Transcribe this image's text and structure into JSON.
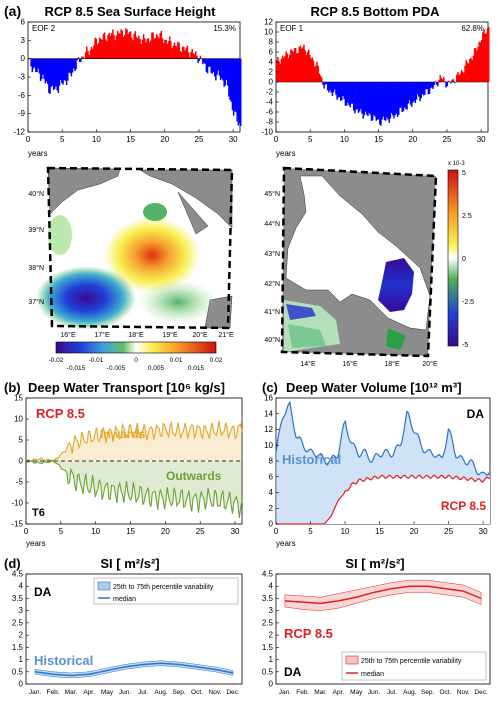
{
  "panels": {
    "a": {
      "tag": "(a)",
      "left_title": "RCP 8.5 Sea Surface Height",
      "right_title": "RCP 8.5 Bottom PDA",
      "left_ts": {
        "corner_label": "EOF 2",
        "pct": "15.3%",
        "ylim": [
          -12,
          6
        ],
        "yticks": [
          "6",
          "3",
          "0",
          "-3",
          "-6",
          "-9",
          "-12"
        ],
        "xlim": [
          0,
          31
        ],
        "xticks": [
          "0",
          "5",
          "10",
          "15",
          "20",
          "25",
          "30"
        ],
        "xlabel": "years"
      },
      "right_ts": {
        "corner_label": "EOF 1",
        "pct": "62.8%",
        "ylim": [
          -10,
          12
        ],
        "yticks": [
          "12",
          "10",
          "8",
          "6",
          "4",
          "2",
          "0",
          "-2",
          "-4",
          "-6",
          "-8",
          "-10"
        ],
        "xlim": [
          0,
          31
        ],
        "xticks": [
          "0",
          "5",
          "10",
          "15",
          "20",
          "25",
          "30"
        ],
        "xlabel": "years"
      },
      "left_map": {
        "lat_labels": [
          "40°N",
          "39°N",
          "38°N",
          "37°N"
        ],
        "lon_labels": [
          "16°E",
          "17°E",
          "18°E",
          "19°E",
          "20°E",
          "21°E"
        ],
        "colorbar_ticks": [
          "-0.02",
          "-0.015",
          "-0.01",
          "-0.005",
          "0",
          "0.005",
          "0.01",
          "0.015",
          "0.02"
        ]
      },
      "right_map": {
        "lat_labels": [
          "45°N",
          "44°N",
          "43°N",
          "42°N",
          "41°N",
          "40°N"
        ],
        "lon_labels": [
          "14°E",
          "16°E",
          "18°E",
          "20°E"
        ],
        "colorbar_scale": "x 10-3",
        "colorbar_ticks": [
          "5",
          "2.5",
          "0",
          "-2.5",
          "-5"
        ]
      }
    },
    "b": {
      "tag": "(b)",
      "title": "Deep Water Transport [10⁶ kg/s]",
      "scenario": "RCP 8.5",
      "inwards": "Inwards",
      "outwards": "Outwards",
      "corner": "T6",
      "yticks": [
        "15",
        "10",
        "5",
        "0",
        "-5",
        "-10",
        "-15"
      ],
      "xticks": [
        "0",
        "5",
        "10",
        "15",
        "20",
        "25",
        "30"
      ],
      "xlabel": "years"
    },
    "c": {
      "tag": "(c)",
      "title": "Deep Water Volume [10¹² m³]",
      "corner": "DA",
      "historical": "Historical",
      "scenario": "RCP 8.5",
      "yticks": [
        "16",
        "14",
        "12",
        "10",
        "8",
        "6",
        "4",
        "2",
        "0"
      ],
      "xticks": [
        "0",
        "5",
        "10",
        "15",
        "20",
        "25",
        "30"
      ],
      "xlabel": "years"
    },
    "d": {
      "tag": "(d)",
      "left_title": "SI [ m²/s²]",
      "right_title": "SI [ m²/s²]",
      "left_corner": "DA",
      "left_label": "Historical",
      "right_corner": "DA",
      "right_label": "RCP 8.5",
      "legend_band": "25th to 75th percentile variability",
      "legend_median": "median",
      "yticks": [
        "4.5",
        "4",
        "3.5",
        "3",
        "2.5",
        "2",
        "1.5",
        "1",
        "0.5",
        "0"
      ],
      "months": [
        "Jan.",
        "Feb.",
        "Mar.",
        "Apr.",
        "May",
        "Jun.",
        "Jul.",
        "Aug.",
        "Sep.",
        "Oct.",
        "Nov.",
        "Dec."
      ]
    }
  },
  "colors": {
    "positive": "#ff0000",
    "negative": "#0000ff",
    "inwards": "#e2a72a",
    "outwards": "#6aa232",
    "historical": "#2a73c8",
    "rcp": "#e02020",
    "land": "#8c8c8c"
  },
  "chart_data": [
    {
      "type": "bar",
      "panel": "a-left",
      "xlabel": "years",
      "ylim": [
        -12,
        6
      ],
      "x": [
        0,
        1,
        2,
        3,
        4,
        5,
        6,
        7,
        8,
        9,
        10,
        11,
        12,
        13,
        14,
        15,
        16,
        17,
        18,
        19,
        20,
        21,
        22,
        23,
        24,
        25,
        26,
        27,
        28,
        29,
        30,
        31
      ],
      "values": [
        -0.5,
        -2,
        -3,
        -5,
        -5,
        -4,
        -3,
        -1,
        0.5,
        1.5,
        3,
        3.5,
        4,
        4,
        4.5,
        4,
        3.5,
        3,
        3.5,
        4,
        3,
        2.5,
        2,
        1.5,
        1,
        0,
        -1.5,
        -2.5,
        -3,
        -4.5,
        -9,
        -11
      ]
    },
    {
      "type": "bar",
      "panel": "a-right",
      "xlabel": "years",
      "ylim": [
        -10,
        12
      ],
      "x": [
        0,
        1,
        2,
        3,
        4,
        5,
        6,
        7,
        8,
        9,
        10,
        11,
        12,
        13,
        14,
        15,
        16,
        17,
        18,
        19,
        20,
        21,
        22,
        23,
        24,
        25,
        26,
        27,
        28,
        29,
        30,
        31
      ],
      "values": [
        4,
        5,
        6,
        6.5,
        7,
        5,
        3,
        -1,
        -2,
        -3,
        -4,
        -5,
        -6,
        -6.5,
        -7,
        -8,
        -7.5,
        -7,
        -6,
        -5,
        -4,
        -3,
        -2,
        -1,
        1,
        -0.5,
        0.5,
        2,
        4,
        6,
        9,
        11
      ]
    },
    {
      "type": "area",
      "panel": "b",
      "xlabel": "years",
      "ylim": [
        -15,
        15
      ],
      "series": [
        {
          "name": "Inwards",
          "x": [
            0,
            2,
            4,
            6,
            7,
            8,
            10,
            12,
            14,
            16,
            18,
            20,
            22,
            24,
            26,
            28,
            30,
            31
          ],
          "values": [
            0,
            0.5,
            0,
            3,
            4.5,
            5,
            6,
            6.5,
            7,
            7,
            7,
            7.5,
            7,
            7.5,
            7,
            7.5,
            7,
            8
          ]
        },
        {
          "name": "Outwards",
          "x": [
            0,
            2,
            4,
            6,
            7,
            8,
            10,
            12,
            14,
            16,
            18,
            20,
            22,
            24,
            26,
            28,
            30,
            31
          ],
          "values": [
            0,
            -0.5,
            0,
            -3,
            -4.5,
            -5.5,
            -6.5,
            -7,
            -7.5,
            -8,
            -8.5,
            -9,
            -9,
            -9.5,
            -9,
            -9.5,
            -10,
            -11
          ]
        }
      ]
    },
    {
      "type": "area",
      "panel": "c",
      "xlabel": "years",
      "ylim": [
        0,
        16
      ],
      "series": [
        {
          "name": "Historical",
          "x": [
            0,
            1,
            2,
            3,
            4,
            5,
            6,
            7,
            8,
            9,
            10,
            11,
            12,
            13,
            14,
            15,
            16,
            17,
            18,
            19,
            20,
            21,
            22,
            23,
            24,
            25,
            26,
            27,
            28,
            29,
            30,
            31
          ],
          "values": [
            9,
            14,
            15,
            11,
            10,
            9,
            9,
            8,
            8,
            9,
            13,
            10,
            9,
            9,
            8,
            9,
            9,
            9,
            10,
            14,
            12,
            10,
            9,
            9,
            8,
            12,
            9,
            8,
            8,
            7,
            6,
            7
          ]
        },
        {
          "name": "RCP 8.5",
          "x": [
            0,
            4,
            7,
            8,
            9,
            10,
            11,
            12,
            15,
            20,
            25,
            30,
            31
          ],
          "values": [
            0,
            0,
            0,
            1,
            3,
            4,
            5,
            5.5,
            6,
            6,
            6,
            5.5,
            6
          ]
        }
      ]
    },
    {
      "type": "line",
      "panel": "d-left",
      "ylim": [
        0,
        4.5
      ],
      "categories": [
        "Jan.",
        "Feb.",
        "Mar.",
        "Apr.",
        "May",
        "Jun.",
        "Jul.",
        "Aug.",
        "Sep.",
        "Oct.",
        "Nov.",
        "Dec."
      ],
      "series": [
        {
          "name": "median",
          "values": [
            0.5,
            0.4,
            0.35,
            0.4,
            0.55,
            0.7,
            0.8,
            0.85,
            0.8,
            0.7,
            0.6,
            0.45
          ]
        },
        {
          "name": "25th to 75th percentile variability",
          "low": [
            0.4,
            0.3,
            0.25,
            0.3,
            0.45,
            0.6,
            0.7,
            0.75,
            0.7,
            0.6,
            0.5,
            0.35
          ],
          "high": [
            0.6,
            0.5,
            0.45,
            0.5,
            0.65,
            0.8,
            0.9,
            0.95,
            0.9,
            0.8,
            0.7,
            0.55
          ]
        }
      ]
    },
    {
      "type": "line",
      "panel": "d-right",
      "ylim": [
        0,
        4.5
      ],
      "categories": [
        "Jan.",
        "Feb.",
        "Mar.",
        "Apr.",
        "May",
        "Jun.",
        "Jul.",
        "Aug.",
        "Sep.",
        "Oct.",
        "Nov.",
        "Dec."
      ],
      "series": [
        {
          "name": "median",
          "values": [
            3.4,
            3.35,
            3.3,
            3.4,
            3.55,
            3.75,
            3.9,
            4.0,
            4.0,
            3.9,
            3.8,
            3.5
          ]
        },
        {
          "name": "25th to 75th percentile variability",
          "low": [
            3.15,
            3.05,
            3.0,
            3.1,
            3.3,
            3.5,
            3.65,
            3.75,
            3.75,
            3.65,
            3.55,
            3.25
          ],
          "high": [
            3.65,
            3.6,
            3.55,
            3.7,
            3.85,
            4.0,
            4.15,
            4.25,
            4.25,
            4.15,
            4.05,
            3.75
          ]
        }
      ]
    }
  ]
}
